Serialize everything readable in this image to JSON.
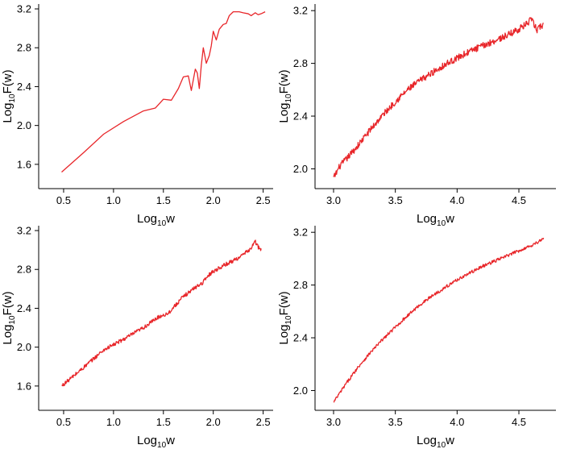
{
  "chart_data": [
    {
      "type": "line",
      "panel": "top-left",
      "xlabel": {
        "base": "Log",
        "sub": "10",
        "rest": "w"
      },
      "ylabel": {
        "base": "Log",
        "sub": "10",
        "rest": "F(w)"
      },
      "xlim": [
        0.25,
        2.6
      ],
      "ylim": [
        1.35,
        3.25
      ],
      "x_ticks": [
        0.5,
        1.0,
        1.5,
        2.0,
        2.5
      ],
      "x_tick_labels": [
        "0.5",
        "1.0",
        "1.5",
        "2.0",
        "2.5"
      ],
      "y_ticks": [
        1.6,
        2.0,
        2.4,
        2.8,
        3.2
      ],
      "y_tick_labels": [
        "1.6",
        "2.0",
        "2.4",
        "2.8",
        "3.2"
      ],
      "series": [
        {
          "color": "#e8262a",
          "points": [
            [
              0.48,
              1.52
            ],
            [
              0.7,
              1.72
            ],
            [
              0.9,
              1.91
            ],
            [
              1.1,
              2.04
            ],
            [
              1.3,
              2.15
            ],
            [
              1.42,
              2.18
            ],
            [
              1.5,
              2.27
            ],
            [
              1.58,
              2.26
            ],
            [
              1.65,
              2.38
            ],
            [
              1.7,
              2.5
            ],
            [
              1.75,
              2.51
            ],
            [
              1.78,
              2.36
            ],
            [
              1.82,
              2.58
            ],
            [
              1.84,
              2.54
            ],
            [
              1.86,
              2.38
            ],
            [
              1.88,
              2.62
            ],
            [
              1.9,
              2.8
            ],
            [
              1.93,
              2.64
            ],
            [
              1.96,
              2.72
            ],
            [
              1.98,
              2.82
            ],
            [
              2.0,
              2.97
            ],
            [
              2.03,
              2.88
            ],
            [
              2.06,
              2.99
            ],
            [
              2.1,
              3.04
            ],
            [
              2.13,
              3.05
            ],
            [
              2.16,
              3.13
            ],
            [
              2.2,
              3.17
            ],
            [
              2.26,
              3.17
            ],
            [
              2.3,
              3.16
            ],
            [
              2.35,
              3.15
            ],
            [
              2.38,
              3.13
            ],
            [
              2.42,
              3.16
            ],
            [
              2.45,
              3.14
            ],
            [
              2.48,
              3.15
            ],
            [
              2.52,
              3.17
            ]
          ]
        }
      ]
    },
    {
      "type": "line",
      "panel": "top-right",
      "xlabel": {
        "base": "Log",
        "sub": "10",
        "rest": "w"
      },
      "ylabel": {
        "base": "Log",
        "sub": "10",
        "rest": "F(w)"
      },
      "xlim": [
        2.85,
        4.8
      ],
      "ylim": [
        1.85,
        3.25
      ],
      "x_ticks": [
        3.0,
        3.5,
        4.0,
        4.5
      ],
      "x_tick_labels": [
        "3.0",
        "3.5",
        "4.0",
        "4.5"
      ],
      "y_ticks": [
        2.0,
        2.4,
        2.8,
        3.2
      ],
      "y_tick_labels": [
        "2.0",
        "2.4",
        "2.8",
        "3.2"
      ],
      "series": [
        {
          "color": "#e8262a",
          "points": [
            [
              3.0,
              1.93
            ],
            [
              3.05,
              2.02
            ],
            [
              3.1,
              2.07
            ],
            [
              3.2,
              2.18
            ],
            [
              3.3,
              2.3
            ],
            [
              3.4,
              2.41
            ],
            [
              3.5,
              2.51
            ],
            [
              3.6,
              2.6
            ],
            [
              3.7,
              2.67
            ],
            [
              3.8,
              2.73
            ],
            [
              3.9,
              2.79
            ],
            [
              4.0,
              2.84
            ],
            [
              4.1,
              2.89
            ],
            [
              4.2,
              2.93
            ],
            [
              4.3,
              2.97
            ],
            [
              4.4,
              3.01
            ],
            [
              4.5,
              3.06
            ],
            [
              4.55,
              3.09
            ],
            [
              4.6,
              3.13
            ],
            [
              4.62,
              3.1
            ],
            [
              4.65,
              3.05
            ],
            [
              4.68,
              3.09
            ],
            [
              4.7,
              3.08
            ]
          ],
          "noise_amplitude": 0.025
        }
      ]
    },
    {
      "type": "line",
      "panel": "bottom-left",
      "xlabel": {
        "base": "Log",
        "sub": "10",
        "rest": "w"
      },
      "ylabel": {
        "base": "Log",
        "sub": "10",
        "rest": "F(w)"
      },
      "xlim": [
        0.25,
        2.6
      ],
      "ylim": [
        1.35,
        3.25
      ],
      "x_ticks": [
        0.5,
        1.0,
        1.5,
        2.0,
        2.5
      ],
      "x_tick_labels": [
        "0.5",
        "1.0",
        "1.5",
        "2.0",
        "2.5"
      ],
      "y_ticks": [
        1.6,
        2.0,
        2.4,
        2.8,
        3.2
      ],
      "y_tick_labels": [
        "1.6",
        "2.0",
        "2.4",
        "2.8",
        "3.2"
      ],
      "series": [
        {
          "color": "#e8262a",
          "points": [
            [
              0.48,
              1.6
            ],
            [
              0.7,
              1.79
            ],
            [
              0.9,
              1.97
            ],
            [
              1.1,
              2.08
            ],
            [
              1.3,
              2.2
            ],
            [
              1.45,
              2.31
            ],
            [
              1.55,
              2.35
            ],
            [
              1.62,
              2.43
            ],
            [
              1.7,
              2.52
            ],
            [
              1.8,
              2.6
            ],
            [
              1.9,
              2.67
            ],
            [
              1.95,
              2.74
            ],
            [
              2.0,
              2.78
            ],
            [
              2.1,
              2.84
            ],
            [
              2.2,
              2.89
            ],
            [
              2.3,
              2.95
            ],
            [
              2.38,
              3.02
            ],
            [
              2.42,
              3.09
            ],
            [
              2.45,
              3.03
            ],
            [
              2.48,
              3.0
            ]
          ],
          "noise_amplitude": 0.02
        }
      ]
    },
    {
      "type": "line",
      "panel": "bottom-right",
      "xlabel": {
        "base": "Log",
        "sub": "10",
        "rest": "w"
      },
      "ylabel": {
        "base": "Log",
        "sub": "10",
        "rest": "F(w)"
      },
      "xlim": [
        2.85,
        4.8
      ],
      "ylim": [
        1.85,
        3.25
      ],
      "x_ticks": [
        3.0,
        3.5,
        4.0,
        4.5
      ],
      "x_tick_labels": [
        "3.0",
        "3.5",
        "4.0",
        "4.5"
      ],
      "y_ticks": [
        2.0,
        2.4,
        2.8,
        3.2
      ],
      "y_tick_labels": [
        "2.0",
        "2.4",
        "2.8",
        "3.2"
      ],
      "series": [
        {
          "color": "#e8262a",
          "points": [
            [
              3.0,
              1.91
            ],
            [
              3.1,
              2.05
            ],
            [
              3.2,
              2.18
            ],
            [
              3.3,
              2.29
            ],
            [
              3.4,
              2.39
            ],
            [
              3.5,
              2.48
            ],
            [
              3.6,
              2.57
            ],
            [
              3.7,
              2.65
            ],
            [
              3.8,
              2.72
            ],
            [
              3.9,
              2.78
            ],
            [
              4.0,
              2.84
            ],
            [
              4.1,
              2.89
            ],
            [
              4.2,
              2.94
            ],
            [
              4.3,
              2.98
            ],
            [
              4.4,
              3.02
            ],
            [
              4.5,
              3.06
            ],
            [
              4.6,
              3.1
            ],
            [
              4.7,
              3.15
            ]
          ],
          "noise_amplitude": 0.012
        }
      ]
    }
  ]
}
